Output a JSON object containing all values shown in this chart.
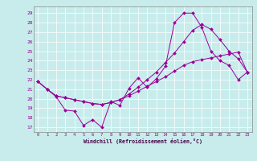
{
  "xlabel": "Windchill (Refroidissement éolien,°C)",
  "background_color": "#c8ecec",
  "line_color": "#990099",
  "x_ticks": [
    0,
    1,
    2,
    3,
    4,
    5,
    6,
    7,
    8,
    9,
    10,
    11,
    12,
    13,
    14,
    15,
    16,
    17,
    18,
    19,
    20,
    21,
    22,
    23
  ],
  "y_ticks": [
    17,
    18,
    19,
    20,
    21,
    22,
    23,
    24,
    25,
    26,
    27,
    28,
    29
  ],
  "xlim": [
    -0.5,
    23.5
  ],
  "ylim": [
    16.5,
    29.7
  ],
  "series": [
    {
      "x": [
        0,
        1,
        2,
        3,
        4,
        5,
        6,
        7,
        8,
        9,
        10,
        11,
        12,
        13,
        14,
        15,
        16,
        17,
        18,
        19,
        20,
        21,
        22,
        23
      ],
      "y": [
        21.8,
        21.0,
        20.2,
        18.8,
        18.7,
        17.2,
        17.8,
        17.0,
        19.7,
        19.3,
        21.1,
        22.2,
        21.2,
        22.1,
        23.4,
        28.0,
        29.0,
        29.0,
        27.5,
        25.0,
        24.0,
        23.5,
        22.0,
        22.8
      ]
    },
    {
      "x": [
        0,
        1,
        2,
        3,
        4,
        5,
        6,
        7,
        8,
        9,
        10,
        11,
        12,
        13,
        14,
        15,
        16,
        17,
        18,
        19,
        20,
        21,
        22,
        23
      ],
      "y": [
        21.8,
        21.0,
        20.3,
        20.1,
        19.9,
        19.7,
        19.5,
        19.4,
        19.6,
        19.9,
        20.3,
        20.8,
        21.3,
        21.8,
        22.3,
        22.9,
        23.5,
        23.9,
        24.1,
        24.3,
        24.5,
        24.7,
        24.9,
        22.8
      ]
    },
    {
      "x": [
        0,
        1,
        2,
        3,
        4,
        5,
        6,
        7,
        8,
        9,
        10,
        11,
        12,
        13,
        14,
        15,
        16,
        17,
        18,
        19,
        20,
        21,
        22,
        23
      ],
      "y": [
        21.8,
        21.0,
        20.3,
        20.1,
        19.9,
        19.7,
        19.5,
        19.4,
        19.6,
        19.9,
        20.5,
        21.2,
        22.0,
        22.8,
        23.8,
        24.8,
        26.0,
        27.2,
        27.8,
        27.3,
        26.2,
        25.0,
        24.2,
        22.8
      ]
    }
  ]
}
